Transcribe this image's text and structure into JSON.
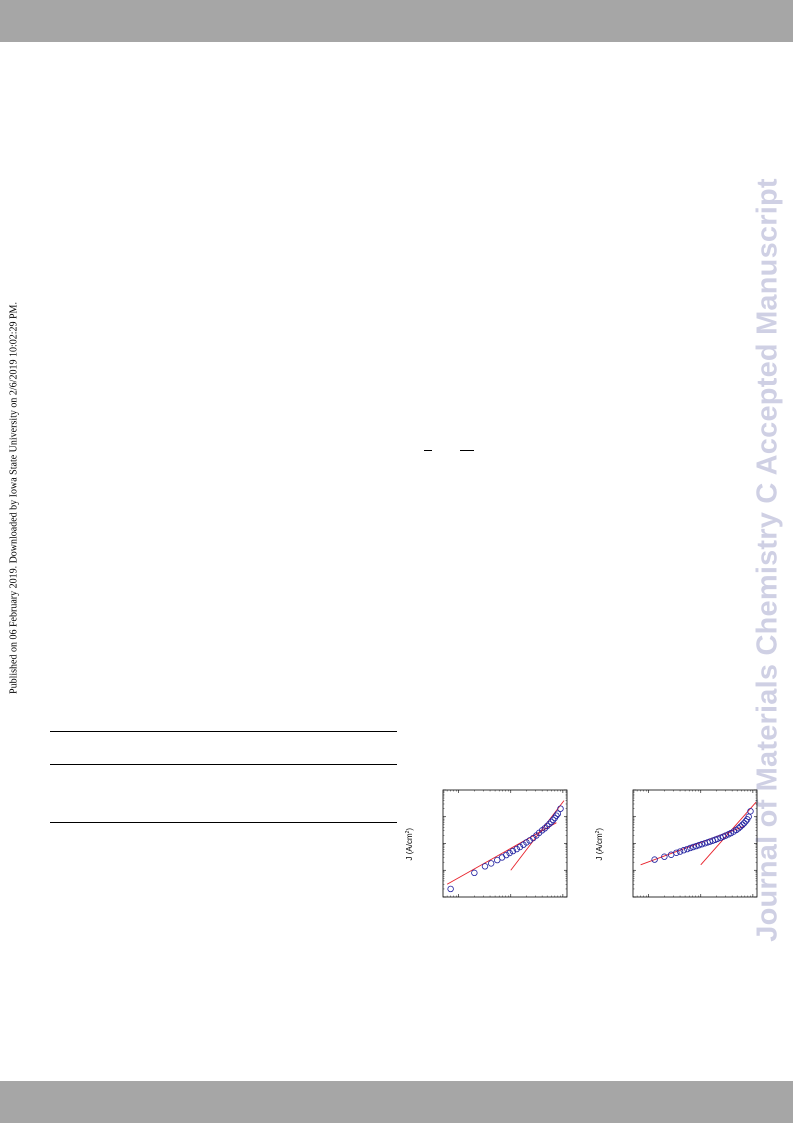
{
  "side_note": "Published on 06 February 2019. Downloaded by Iowa State University on 2/6/2019 10:02:29 PM.",
  "watermark": "Journal of Materials Chemistry C Accepted Manuscript",
  "colors": {
    "band": "#a6a6a6",
    "watermark": "#cfd0e4",
    "marker": "#1f1f9f",
    "fit_line": "#e8202a"
  },
  "chart_data": [
    {
      "type": "scatter",
      "title": "",
      "ylabel": "J (A/cm",
      "ylabel_sup": "2",
      "xscale": "log",
      "yscale": "log",
      "xlim": [
        0.05,
        12
      ],
      "ylim": [
        0.0001,
        1
      ],
      "series": [
        {
          "x": [
            0.07,
            0.2,
            0.32,
            0.42,
            0.55,
            0.68,
            0.82,
            0.95,
            1.1,
            1.3,
            1.5,
            1.75,
            2.0,
            2.3,
            2.7,
            3.1,
            3.5,
            4.0,
            4.5,
            5.0,
            5.5,
            6.0,
            6.5,
            7.0,
            7.5,
            8.0,
            9.0
          ],
          "y": [
            0.0002,
            0.0008,
            0.0014,
            0.0018,
            0.0024,
            0.003,
            0.0037,
            0.0044,
            0.0052,
            0.0062,
            0.0074,
            0.009,
            0.011,
            0.013,
            0.016,
            0.02,
            0.025,
            0.031,
            0.037,
            0.045,
            0.054,
            0.064,
            0.076,
            0.09,
            0.11,
            0.13,
            0.2
          ]
        }
      ],
      "fit_lines": [
        {
          "x": [
            0.06,
            7.5
          ],
          "y": [
            0.0003,
            0.06
          ]
        },
        {
          "x": [
            1.0,
            10.5
          ],
          "y": [
            0.001,
            0.4
          ]
        }
      ]
    },
    {
      "type": "scatter",
      "title": "",
      "ylabel": "J (A/cm",
      "ylabel_sup": "2",
      "xscale": "log",
      "yscale": "log",
      "xlim": [
        0.05,
        12
      ],
      "ylim": [
        0.0001,
        1
      ],
      "series": [
        {
          "x": [
            0.13,
            0.2,
            0.27,
            0.34,
            0.4,
            0.47,
            0.55,
            0.63,
            0.72,
            0.82,
            0.93,
            1.05,
            1.2,
            1.35,
            1.5,
            1.7,
            1.9,
            2.1,
            2.4,
            2.7,
            3.0,
            3.4,
            3.8,
            4.3,
            4.8,
            5.3,
            5.8,
            6.3,
            6.8,
            7.3,
            7.8,
            8.3,
            9.0
          ],
          "y": [
            0.0025,
            0.0032,
            0.0038,
            0.0045,
            0.005,
            0.0056,
            0.0062,
            0.0068,
            0.0074,
            0.008,
            0.0087,
            0.0094,
            0.0102,
            0.011,
            0.0118,
            0.0128,
            0.0138,
            0.015,
            0.0165,
            0.018,
            0.0198,
            0.022,
            0.0245,
            0.028,
            0.032,
            0.037,
            0.043,
            0.05,
            0.058,
            0.068,
            0.08,
            0.1,
            0.16
          ]
        }
      ],
      "fit_lines": [
        {
          "x": [
            0.07,
            7.0
          ],
          "y": [
            0.0016,
            0.045
          ]
        },
        {
          "x": [
            1.0,
            11.5
          ],
          "y": [
            0.0016,
            0.35
          ]
        }
      ]
    }
  ]
}
